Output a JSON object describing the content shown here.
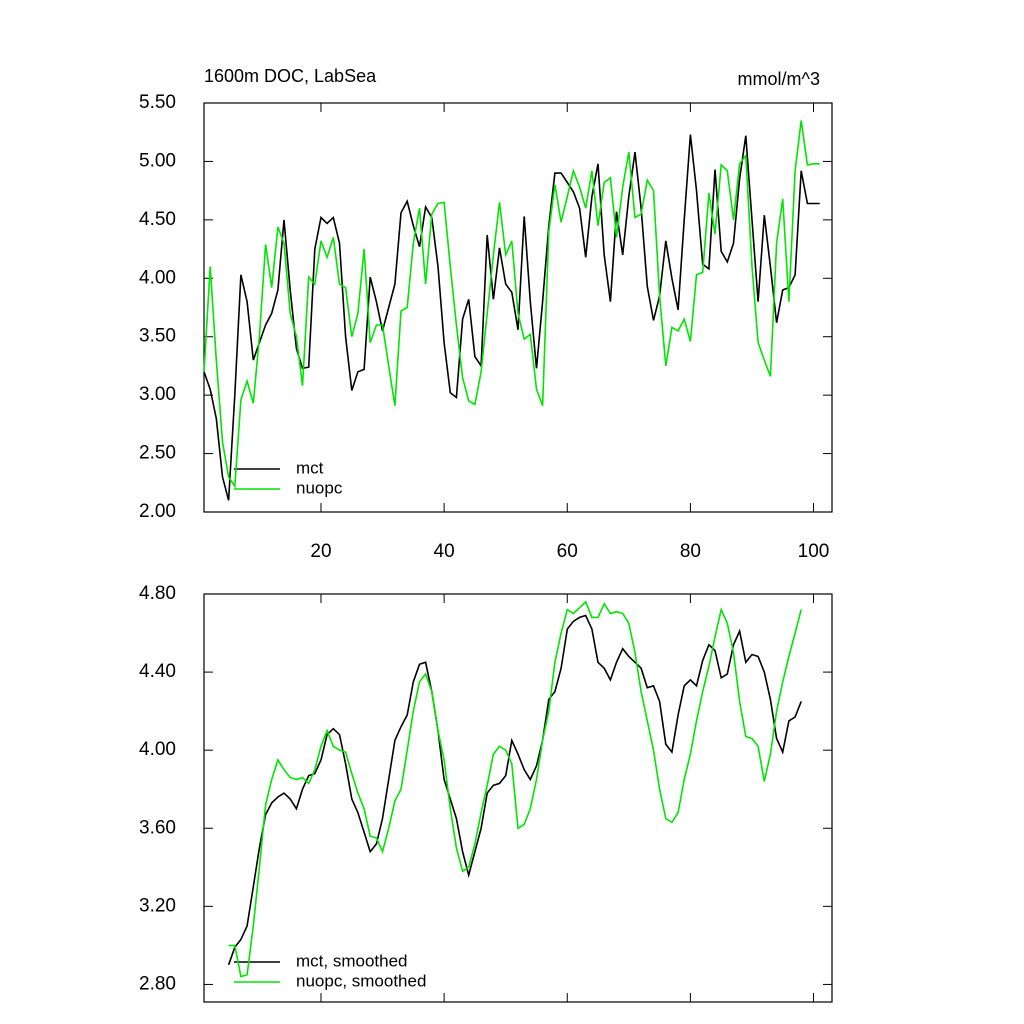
{
  "chart_data": [
    {
      "type": "line",
      "title": "1600m DOC, LabSea",
      "right_title": "mmol/m^3",
      "x": [
        1,
        2,
        3,
        4,
        5,
        6,
        7,
        8,
        9,
        10,
        11,
        12,
        13,
        14,
        15,
        16,
        17,
        18,
        19,
        20,
        21,
        22,
        23,
        24,
        25,
        26,
        27,
        28,
        29,
        30,
        31,
        32,
        33,
        34,
        35,
        36,
        37,
        38,
        39,
        40,
        41,
        42,
        43,
        44,
        45,
        46,
        47,
        48,
        49,
        50,
        51,
        52,
        53,
        54,
        55,
        56,
        57,
        58,
        59,
        60,
        61,
        62,
        63,
        64,
        65,
        66,
        67,
        68,
        69,
        70,
        71,
        72,
        73,
        74,
        75,
        76,
        77,
        78,
        79,
        80,
        81,
        82,
        83,
        84,
        85,
        86,
        87,
        88,
        89,
        90,
        91,
        92,
        93,
        94,
        95,
        96,
        97,
        98,
        99,
        100,
        101
      ],
      "series": [
        {
          "name": "mct",
          "color": "#000000",
          "values": [
            3.2,
            3.05,
            2.8,
            2.3,
            2.1,
            3.0,
            4.03,
            3.8,
            3.3,
            3.45,
            3.6,
            3.7,
            3.9,
            4.5,
            3.9,
            3.4,
            3.23,
            3.24,
            4.25,
            4.52,
            4.47,
            4.52,
            4.3,
            3.5,
            3.04,
            3.2,
            3.22,
            4.01,
            3.8,
            3.55,
            3.75,
            3.95,
            4.56,
            4.66,
            4.45,
            4.27,
            4.61,
            4.52,
            4.1,
            3.45,
            3.02,
            2.98,
            3.65,
            3.82,
            3.33,
            3.25,
            4.37,
            3.82,
            4.26,
            3.95,
            3.88,
            3.56,
            4.53,
            3.8,
            3.23,
            3.8,
            4.45,
            4.9,
            4.9,
            4.82,
            4.74,
            4.6,
            4.18,
            4.7,
            4.98,
            4.2,
            3.8,
            4.57,
            4.2,
            4.7,
            5.08,
            4.6,
            3.93,
            3.64,
            3.85,
            4.32,
            4.0,
            3.73,
            4.5,
            5.23,
            4.75,
            4.12,
            4.08,
            4.93,
            4.23,
            4.14,
            4.3,
            4.85,
            5.22,
            4.5,
            3.8,
            4.54,
            4.1,
            3.62,
            3.9,
            3.92,
            4.03,
            4.92,
            4.64,
            4.64,
            4.64
          ]
        },
        {
          "name": "nuopc",
          "color": "#00e600",
          "values": [
            3.2,
            4.1,
            3.3,
            2.6,
            2.3,
            2.22,
            2.96,
            3.12,
            2.93,
            3.5,
            4.29,
            3.92,
            4.44,
            4.3,
            3.7,
            3.5,
            3.08,
            4.01,
            3.95,
            4.32,
            4.18,
            4.35,
            3.95,
            3.92,
            3.5,
            3.7,
            4.25,
            3.45,
            3.6,
            3.6,
            3.25,
            2.91,
            3.72,
            3.75,
            4.3,
            4.6,
            3.95,
            4.55,
            4.64,
            4.65,
            4.1,
            3.6,
            3.15,
            2.95,
            2.92,
            3.2,
            3.7,
            4.2,
            4.65,
            4.2,
            4.32,
            3.7,
            3.48,
            3.52,
            3.05,
            2.91,
            4.4,
            4.8,
            4.48,
            4.7,
            4.92,
            4.78,
            4.6,
            4.92,
            4.45,
            4.82,
            4.86,
            4.35,
            4.78,
            5.08,
            4.52,
            4.55,
            4.84,
            4.75,
            3.85,
            3.25,
            3.58,
            3.55,
            3.65,
            3.46,
            4.03,
            4.05,
            4.73,
            4.38,
            4.97,
            4.92,
            4.5,
            4.98,
            5.05,
            4.1,
            3.45,
            3.3,
            3.16,
            4.3,
            4.68,
            3.8,
            4.92,
            5.35,
            4.97,
            4.98,
            4.98
          ]
        }
      ],
      "xlim": [
        1,
        103
      ],
      "xticks": [
        20,
        40,
        60,
        80,
        100
      ],
      "ylim": [
        2,
        5.5
      ],
      "yticks": [
        {
          "value": 2,
          "label": "2.00"
        },
        {
          "value": 2.5,
          "label": "2.50"
        },
        {
          "value": 3,
          "label": "3.00"
        },
        {
          "value": 3.5,
          "label": "3.50"
        },
        {
          "value": 4,
          "label": "4.00"
        },
        {
          "value": 4.5,
          "label": "4.50"
        },
        {
          "value": 5,
          "label": "5.00"
        },
        {
          "value": 5.5,
          "label": "5.50"
        }
      ]
    },
    {
      "type": "line",
      "x": [
        5,
        6,
        7,
        8,
        9,
        10,
        11,
        12,
        13,
        14,
        15,
        16,
        17,
        18,
        19,
        20,
        21,
        22,
        23,
        24,
        25,
        26,
        27,
        28,
        29,
        30,
        31,
        32,
        33,
        34,
        35,
        36,
        37,
        38,
        39,
        40,
        41,
        42,
        43,
        44,
        45,
        46,
        47,
        48,
        49,
        50,
        51,
        52,
        53,
        54,
        55,
        56,
        57,
        58,
        59,
        60,
        61,
        62,
        63,
        64,
        65,
        66,
        67,
        68,
        69,
        70,
        71,
        72,
        73,
        74,
        75,
        76,
        77,
        78,
        79,
        80,
        81,
        82,
        83,
        84,
        85,
        86,
        87,
        88,
        89,
        90,
        91,
        92,
        93,
        94,
        95,
        96,
        97,
        98
      ],
      "series": [
        {
          "name": "mct, smoothed",
          "color": "#000000",
          "values": [
            2.9,
            2.99,
            3.03,
            3.1,
            3.3,
            3.5,
            3.67,
            3.73,
            3.76,
            3.78,
            3.75,
            3.7,
            3.8,
            3.87,
            3.88,
            3.95,
            4.08,
            4.11,
            4.08,
            3.93,
            3.75,
            3.68,
            3.58,
            3.48,
            3.52,
            3.65,
            3.85,
            4.05,
            4.12,
            4.18,
            4.35,
            4.44,
            4.45,
            4.3,
            4.1,
            3.85,
            3.75,
            3.65,
            3.48,
            3.36,
            3.48,
            3.6,
            3.78,
            3.82,
            3.83,
            3.87,
            4.05,
            3.98,
            3.9,
            3.85,
            3.92,
            4.05,
            4.26,
            4.3,
            4.42,
            4.62,
            4.66,
            4.68,
            4.69,
            4.62,
            4.45,
            4.42,
            4.36,
            4.45,
            4.52,
            4.48,
            4.45,
            4.42,
            4.32,
            4.33,
            4.25,
            4.03,
            3.99,
            4.18,
            4.33,
            4.36,
            4.33,
            4.46,
            4.54,
            4.51,
            4.37,
            4.39,
            4.54,
            4.61,
            4.45,
            4.49,
            4.48,
            4.4,
            4.26,
            4.06,
            3.99,
            4.15,
            4.17,
            4.25
          ]
        },
        {
          "name": "nuopc, smoothed",
          "color": "#00e600",
          "values": [
            3.0,
            3.0,
            2.84,
            2.85,
            3.1,
            3.4,
            3.72,
            3.85,
            3.95,
            3.9,
            3.86,
            3.85,
            3.86,
            3.83,
            3.9,
            4.02,
            4.1,
            4.02,
            4.0,
            3.99,
            3.88,
            3.78,
            3.7,
            3.56,
            3.55,
            3.48,
            3.6,
            3.74,
            3.8,
            4.0,
            4.2,
            4.35,
            4.39,
            4.3,
            4.1,
            3.95,
            3.7,
            3.5,
            3.38,
            3.4,
            3.52,
            3.68,
            3.82,
            3.98,
            4.02,
            4.0,
            3.93,
            3.6,
            3.62,
            3.7,
            3.85,
            4.05,
            4.2,
            4.45,
            4.6,
            4.72,
            4.7,
            4.73,
            4.76,
            4.68,
            4.68,
            4.75,
            4.7,
            4.71,
            4.7,
            4.65,
            4.5,
            4.3,
            4.15,
            4.0,
            3.8,
            3.65,
            3.63,
            3.68,
            3.85,
            3.98,
            4.15,
            4.3,
            4.43,
            4.58,
            4.72,
            4.65,
            4.5,
            4.25,
            4.07,
            4.06,
            4.02,
            3.84,
            3.98,
            4.2,
            4.35,
            4.48,
            4.6,
            4.72
          ]
        }
      ],
      "xlim": [
        1,
        103
      ],
      "xticks": [
        20,
        40,
        60,
        80,
        100
      ],
      "ylim": [
        2.71,
        4.8
      ],
      "yticks": [
        {
          "value": 2.8,
          "label": "2.80"
        },
        {
          "value": 3.2,
          "label": "3.20"
        },
        {
          "value": 3.6,
          "label": "3.60"
        },
        {
          "value": 4,
          "label": "4.00"
        },
        {
          "value": 4.4,
          "label": "4.40"
        },
        {
          "value": 4.8,
          "label": "4.80"
        }
      ]
    }
  ]
}
